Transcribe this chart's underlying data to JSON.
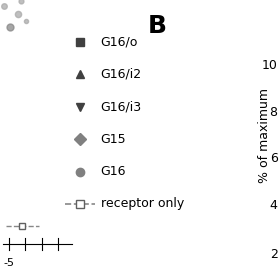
{
  "title": "B",
  "legend_entries": [
    {
      "label": "G16/o",
      "marker": "s",
      "color": "#404040",
      "linestyle": "none"
    },
    {
      "label": "G16/i2",
      "marker": "^",
      "color": "#404040",
      "linestyle": "none"
    },
    {
      "label": "G16/i3",
      "marker": "v",
      "color": "#404040",
      "linestyle": "none"
    },
    {
      "label": "G15",
      "marker": "D",
      "color": "#808080",
      "linestyle": "none"
    },
    {
      "label": "G16",
      "marker": "o",
      "color": "#808080",
      "linestyle": "none"
    },
    {
      "label": "receptor only",
      "marker": "s",
      "color": "#a0a0a0",
      "linestyle": "--",
      "fillstyle": "none"
    }
  ],
  "yticks": [
    2,
    4,
    6,
    8,
    10
  ],
  "ylabel": "% of maximum",
  "background_color": "#ffffff",
  "title_fontsize": 18,
  "label_fontsize": 9,
  "legend_fontsize": 9
}
